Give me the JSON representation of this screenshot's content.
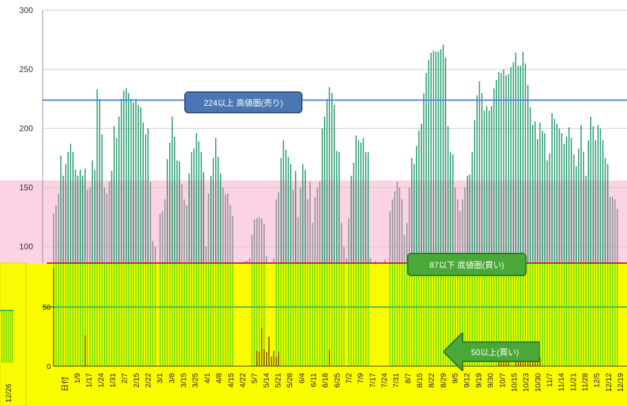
{
  "chart_data": {
    "type": "bar",
    "y_ticks_upper": [
      "300",
      "250",
      "200",
      "150",
      "100"
    ],
    "y_ticks_lower": [
      "50",
      "0"
    ],
    "x_first_label": "日付",
    "x_labels": [
      "1/9",
      "1/17",
      "1/24",
      "1/31",
      "2/7",
      "2/15",
      "2/22",
      "3/1",
      "3/8",
      "3/15",
      "3/25",
      "4/1",
      "4/8",
      "4/15",
      "4/22",
      "5/7",
      "5/14",
      "5/21",
      "5/28",
      "6/4",
      "6/11",
      "6/18",
      "6/25",
      "7/2",
      "7/9",
      "7/17",
      "7/24",
      "7/31",
      "8/7",
      "8/15",
      "8/22",
      "8/29",
      "9/5",
      "9/12",
      "9/19",
      "9/30",
      "10/7",
      "10/15",
      "10/23",
      "10/30",
      "11/7",
      "11/14",
      "11/21",
      "11/28",
      "12/5",
      "12/12",
      "12/19"
    ],
    "side_label": "12/26",
    "series": [
      {
        "values": [
          128,
          135,
          145,
          177,
          160,
          170,
          180,
          187,
          180,
          165,
          160,
          165,
          160,
          166,
          148,
          150,
          173,
          165,
          233,
          225,
          195,
          150,
          145,
          155,
          164,
          202,
          192,
          210,
          225,
          232,
          234,
          230,
          225,
          222,
          225,
          220,
          218,
          205,
          195,
          200,
          155,
          105,
          100,
          80,
          128,
          130,
          140,
          174,
          188,
          210,
          193,
          173,
          172,
          153,
          140,
          135,
          162,
          180,
          183,
          196,
          189,
          180,
          163,
          100,
          145,
          160,
          175,
          192,
          176,
          162,
          150,
          144,
          145,
          135,
          126,
          86,
          85,
          86,
          84,
          88,
          88,
          90,
          110,
          123,
          124,
          125,
          124,
          119,
          92,
          82,
          84,
          90,
          140,
          146,
          175,
          190,
          182,
          176,
          170,
          148,
          164,
          125,
          150,
          170,
          165,
          140,
          155,
          120,
          142,
          150,
          155,
          200,
          210,
          225,
          235,
          230,
          220,
          181,
          180,
          120,
          100,
          90,
          124,
          160,
          171,
          194,
          190,
          188,
          192,
          180,
          180,
          90,
          86,
          88,
          86,
          84,
          86,
          89,
          84,
          130,
          140,
          147,
          155,
          150,
          140,
          110,
          120,
          150,
          175,
          170,
          185,
          198,
          204,
          230,
          247,
          258,
          264,
          266,
          265,
          265,
          267,
          271,
          260,
          202,
          180,
          178,
          150,
          140,
          130,
          140,
          150,
          160,
          161,
          180,
          207,
          228,
          240,
          230,
          215,
          219,
          215,
          219,
          234,
          241,
          248,
          247,
          250,
          245,
          246,
          252,
          256,
          264,
          253,
          253,
          265,
          255,
          237,
          218,
          203,
          206,
          191,
          205,
          198,
          196,
          173,
          179,
          213,
          208,
          204,
          200,
          196,
          187,
          193,
          201,
          192,
          178,
          168,
          183,
          203,
          180,
          160,
          190,
          210,
          202,
          190,
          203,
          200,
          190,
          175,
          170,
          142,
          142,
          140,
          132
        ]
      },
      {
        "values": [
          0,
          0,
          0,
          0,
          0,
          0,
          0,
          0,
          0,
          0,
          0,
          0,
          0,
          26,
          0,
          0,
          0,
          0,
          0,
          0,
          0,
          0,
          0,
          0,
          0,
          0,
          0,
          0,
          0,
          0,
          0,
          0,
          0,
          0,
          0,
          0,
          0,
          0,
          0,
          0,
          0,
          0,
          0,
          0,
          0,
          0,
          0,
          0,
          0,
          0,
          0,
          0,
          0,
          0,
          0,
          0,
          0,
          0,
          0,
          0,
          0,
          0,
          0,
          0,
          0,
          0,
          0,
          0,
          0,
          0,
          0,
          0,
          0,
          0,
          0,
          0,
          0,
          0,
          0,
          0,
          0,
          0,
          0,
          0,
          13,
          12,
          32,
          14,
          12,
          25,
          8,
          13,
          8,
          12,
          0,
          0,
          0,
          0,
          0,
          0,
          0,
          0,
          0,
          0,
          0,
          0,
          0,
          0,
          0,
          0,
          0,
          0,
          0,
          0,
          14,
          0,
          0,
          0,
          0,
          0,
          0,
          0,
          0,
          0,
          0,
          0,
          0,
          0,
          0,
          0,
          0,
          0,
          0,
          0,
          0,
          0,
          0,
          0,
          0,
          0,
          0,
          0,
          0,
          0,
          0,
          0,
          0,
          0,
          0,
          0,
          0,
          0,
          0,
          0,
          0,
          0,
          0,
          0,
          0,
          0,
          0,
          0,
          0,
          0,
          0,
          0,
          0,
          0,
          0,
          0,
          0,
          0,
          0,
          0,
          0,
          0,
          0,
          0,
          0,
          0,
          0,
          0,
          0,
          0,
          9,
          8,
          6,
          8,
          17,
          0,
          0,
          9,
          8,
          12,
          6,
          4,
          12,
          11,
          14,
          13,
          10,
          8,
          0,
          0,
          0,
          0,
          0,
          0,
          0,
          0,
          0,
          0,
          0,
          0,
          0,
          0,
          0,
          0,
          0,
          0,
          0,
          0,
          0,
          0,
          0,
          0,
          0,
          0,
          0,
          0,
          0,
          0,
          0,
          0,
          0,
          0,
          0,
          0,
          0,
          0,
          0,
          0,
          0,
          0,
          0,
          0,
          0,
          0,
          0,
          0,
          0,
          0,
          0,
          0,
          0,
          0,
          0,
          0,
          0,
          0,
          0,
          0,
          0,
          0,
          0
        ]
      }
    ],
    "reference_lines": [
      {
        "value": 224,
        "label": "224以上 高値圏(売り)"
      },
      {
        "value": 87,
        "label": "87以下 底値圏(買い)"
      },
      {
        "value": 50,
        "label": "50以上(買い)"
      }
    ],
    "colors": {
      "high_bar": "#1f9a6a",
      "low_bar": "#8a8f95",
      "green_overlay_bar": "#66dd11",
      "overlay_background": "#fbfb00",
      "pink_band": "#fcd3e4",
      "high_line": "#4a86d6",
      "low_line": "#c0282a",
      "buy_line": "#3fbf55",
      "small_bar": "#7a4b12"
    }
  }
}
